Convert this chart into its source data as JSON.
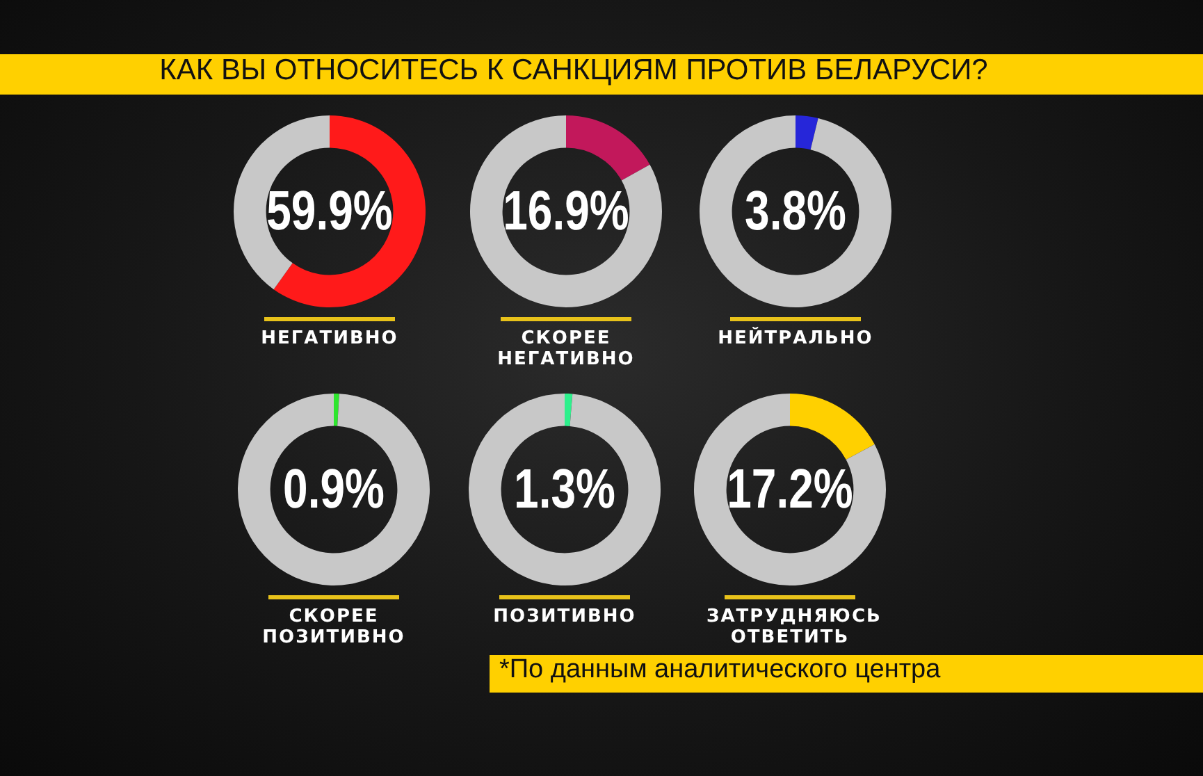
{
  "chart_data": [
    {
      "type": "other",
      "title": "КАК ВЫ ОТНОСИТЕСЬ К САНКЦИЯМ ПРОТИВ БЕЛАРУСИ?"
    },
    {
      "type": "donut",
      "title": "НЕГАТИВНО",
      "categories": [
        null,
        null
      ],
      "values": [
        59.9,
        40.1
      ],
      "colors": [
        "#ff1a1a",
        "#c8c8c8"
      ],
      "value_labels": [
        "59.9%",
        null
      ]
    },
    {
      "type": "donut",
      "title": "СКОРЕЕ НЕГАТИВНО",
      "categories": [
        null,
        null
      ],
      "values": [
        16.9,
        83.1
      ],
      "colors": [
        "#c2185b",
        "#c8c8c8"
      ],
      "value_labels": [
        "16.9%",
        null
      ]
    },
    {
      "type": "donut",
      "title": "НЕЙТРАЛЬНО",
      "categories": [
        null,
        null
      ],
      "values": [
        3.8,
        96.2
      ],
      "colors": [
        "#2626d9",
        "#c8c8c8"
      ],
      "value_labels": [
        "3.8%",
        null
      ]
    },
    {
      "type": "donut",
      "title": "СКОРЕЕ ПОЗИТИВНО",
      "categories": [
        null,
        null
      ],
      "values": [
        0.9,
        99.1
      ],
      "colors": [
        "#2ee62e",
        "#c8c8c8"
      ],
      "value_labels": [
        "0.9%",
        null
      ]
    },
    {
      "type": "donut",
      "title": "ПОЗИТИВНО",
      "categories": [
        null,
        null
      ],
      "values": [
        1.3,
        98.7
      ],
      "colors": [
        "#2ef08c",
        "#c8c8c8"
      ],
      "value_labels": [
        "1.3%",
        null
      ]
    },
    {
      "type": "donut",
      "title": "ЗАТРУДНЯЮСЬ ОТВЕТИТЬ",
      "categories": [
        null,
        null
      ],
      "values": [
        17.2,
        82.8
      ],
      "colors": [
        "#ffd000",
        "#c8c8c8"
      ],
      "value_labels": [
        "17.2%",
        null
      ]
    },
    {
      "type": "other",
      "annotations": [
        "*По данным аналитического центра"
      ]
    }
  ]
}
